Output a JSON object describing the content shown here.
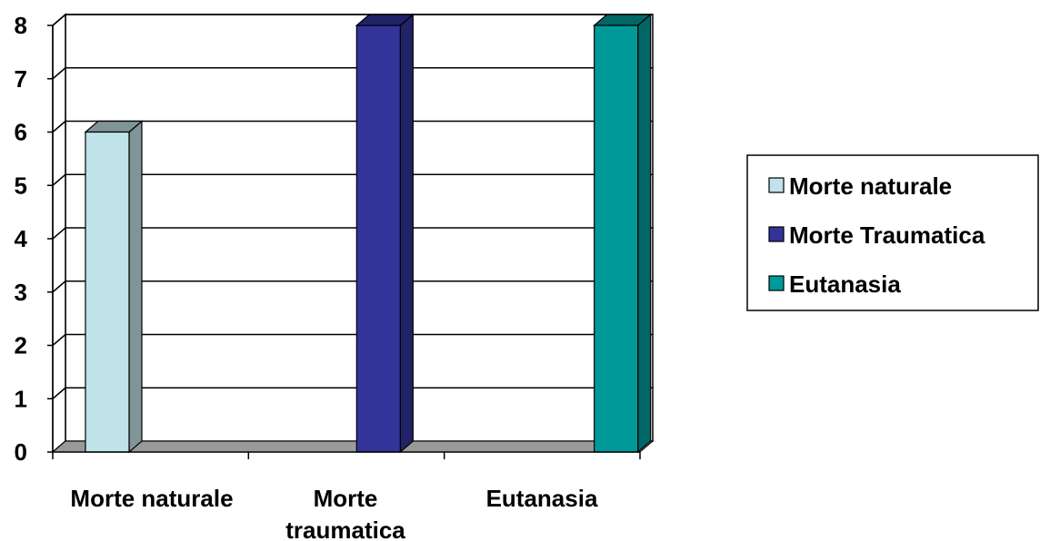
{
  "chart_data": {
    "type": "bar",
    "style": "3d-clustered",
    "categories": [
      [
        "Morte naturale"
      ],
      [
        "Morte",
        "traumatica"
      ],
      [
        "Eutanasia"
      ]
    ],
    "series": [
      {
        "name": "Morte naturale",
        "values": [
          6,
          0,
          0
        ],
        "color": "#BFE3E8",
        "side_color": "#7F9597"
      },
      {
        "name": "Morte Traumatica",
        "values": [
          0,
          8,
          0
        ],
        "color": "#33339A",
        "side_color": "#222268"
      },
      {
        "name": "Eutanasia",
        "values": [
          0,
          0,
          8
        ],
        "color": "#009999",
        "side_color": "#006666"
      }
    ],
    "ylim": [
      0,
      8
    ],
    "yticks": [
      "0",
      "1",
      "2",
      "3",
      "4",
      "5",
      "6",
      "7",
      "8"
    ],
    "grid": true,
    "legend_position": "right",
    "floor_color": "#999999",
    "title": "",
    "xlabel": "",
    "ylabel": ""
  }
}
